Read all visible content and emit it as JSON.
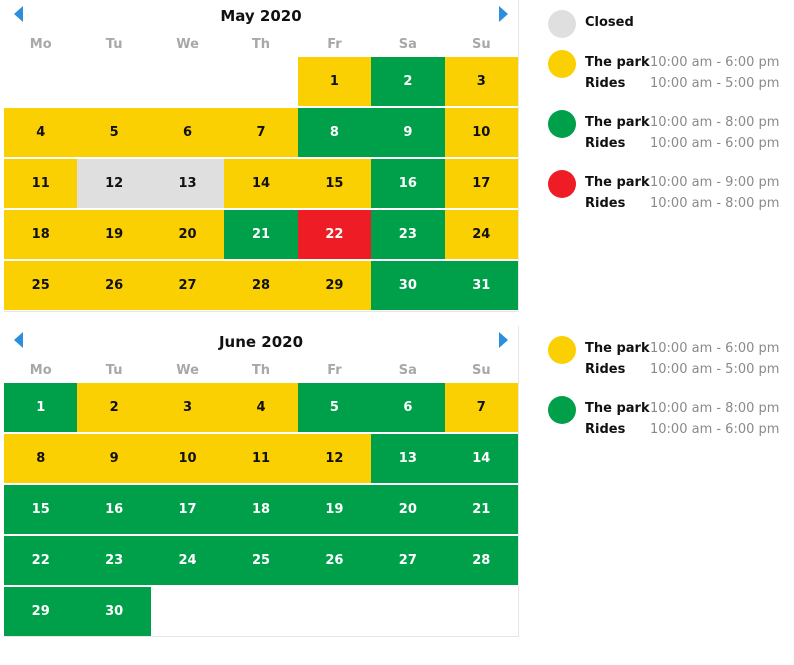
{
  "colors": {
    "open_normal": "#fbd003",
    "open_late": "#00a04a",
    "open_latest": "#ee1c24",
    "closed": "#dfdfdf",
    "nav": "#2d8fdb"
  },
  "weekdays": [
    "Mo",
    "Tu",
    "We",
    "Th",
    "Fr",
    "Sa",
    "Su"
  ],
  "calendars": [
    {
      "title": "May 2020",
      "start_offset": 4,
      "days": [
        {
          "d": "1",
          "s": "yellow"
        },
        {
          "d": "2",
          "s": "green"
        },
        {
          "d": "3",
          "s": "yellow"
        },
        {
          "d": "4",
          "s": "yellow"
        },
        {
          "d": "5",
          "s": "yellow"
        },
        {
          "d": "6",
          "s": "yellow"
        },
        {
          "d": "7",
          "s": "yellow"
        },
        {
          "d": "8",
          "s": "green"
        },
        {
          "d": "9",
          "s": "green"
        },
        {
          "d": "10",
          "s": "yellow"
        },
        {
          "d": "11",
          "s": "yellow"
        },
        {
          "d": "12",
          "s": "closed"
        },
        {
          "d": "13",
          "s": "closed"
        },
        {
          "d": "14",
          "s": "yellow"
        },
        {
          "d": "15",
          "s": "yellow"
        },
        {
          "d": "16",
          "s": "green"
        },
        {
          "d": "17",
          "s": "yellow"
        },
        {
          "d": "18",
          "s": "yellow"
        },
        {
          "d": "19",
          "s": "yellow"
        },
        {
          "d": "20",
          "s": "yellow"
        },
        {
          "d": "21",
          "s": "green"
        },
        {
          "d": "22",
          "s": "red"
        },
        {
          "d": "23",
          "s": "green"
        },
        {
          "d": "24",
          "s": "yellow"
        },
        {
          "d": "25",
          "s": "yellow"
        },
        {
          "d": "26",
          "s": "yellow"
        },
        {
          "d": "27",
          "s": "yellow"
        },
        {
          "d": "28",
          "s": "yellow"
        },
        {
          "d": "29",
          "s": "yellow"
        },
        {
          "d": "30",
          "s": "green"
        },
        {
          "d": "31",
          "s": "green"
        }
      ]
    },
    {
      "title": "June 2020",
      "start_offset": 0,
      "days": [
        {
          "d": "1",
          "s": "green"
        },
        {
          "d": "2",
          "s": "yellow"
        },
        {
          "d": "3",
          "s": "yellow"
        },
        {
          "d": "4",
          "s": "yellow"
        },
        {
          "d": "5",
          "s": "green"
        },
        {
          "d": "6",
          "s": "green"
        },
        {
          "d": "7",
          "s": "yellow"
        },
        {
          "d": "8",
          "s": "yellow"
        },
        {
          "d": "9",
          "s": "yellow"
        },
        {
          "d": "10",
          "s": "yellow"
        },
        {
          "d": "11",
          "s": "yellow"
        },
        {
          "d": "12",
          "s": "yellow"
        },
        {
          "d": "13",
          "s": "green"
        },
        {
          "d": "14",
          "s": "green"
        },
        {
          "d": "15",
          "s": "green"
        },
        {
          "d": "16",
          "s": "green"
        },
        {
          "d": "17",
          "s": "green"
        },
        {
          "d": "18",
          "s": "green"
        },
        {
          "d": "19",
          "s": "green"
        },
        {
          "d": "20",
          "s": "green"
        },
        {
          "d": "21",
          "s": "green"
        },
        {
          "d": "22",
          "s": "green"
        },
        {
          "d": "23",
          "s": "green"
        },
        {
          "d": "24",
          "s": "green"
        },
        {
          "d": "25",
          "s": "green"
        },
        {
          "d": "26",
          "s": "green"
        },
        {
          "d": "27",
          "s": "green"
        },
        {
          "d": "28",
          "s": "green"
        },
        {
          "d": "29",
          "s": "green"
        },
        {
          "d": "30",
          "s": "green"
        }
      ]
    }
  ],
  "legend_may": {
    "closed": {
      "label": "Closed"
    },
    "yellow": {
      "park_label": "The park",
      "park_hours": "10:00 am - 6:00 pm",
      "rides_label": "Rides",
      "rides_hours": "10:00 am - 5:00 pm"
    },
    "green": {
      "park_label": "The park",
      "park_hours": "10:00 am - 8:00 pm",
      "rides_label": "Rides",
      "rides_hours": "10:00 am - 6:00 pm"
    },
    "red": {
      "park_label": "The park",
      "park_hours": "10:00 am - 9:00 pm",
      "rides_label": "Rides",
      "rides_hours": "10:00 am - 8:00 pm"
    }
  },
  "legend_june": {
    "yellow": {
      "park_label": "The park",
      "park_hours": "10:00 am - 6:00 pm",
      "rides_label": "Rides",
      "rides_hours": "10:00 am - 5:00 pm"
    },
    "green": {
      "park_label": "The park",
      "park_hours": "10:00 am - 8:00 pm",
      "rides_label": "Rides",
      "rides_hours": "10:00 am - 6:00 pm"
    }
  }
}
